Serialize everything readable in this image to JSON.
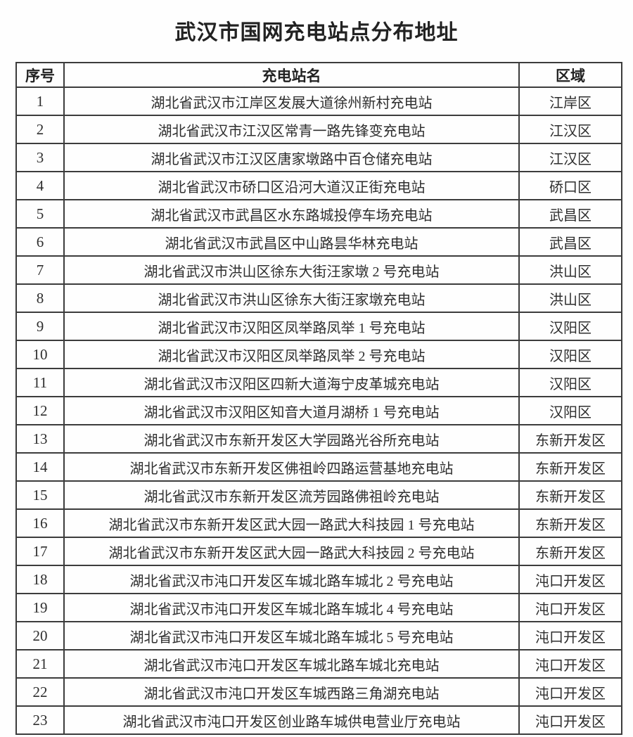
{
  "title": "武汉市国网充电站点分布地址",
  "colors": {
    "background": "#fefefe",
    "border": "#3c3c3c",
    "text": "#2d2d2d"
  },
  "table": {
    "headers": [
      "序号",
      "充电站名",
      "区域"
    ],
    "rows": [
      {
        "no": "1",
        "station": "湖北省武汉市江岸区发展大道徐州新村充电站",
        "district": "江岸区"
      },
      {
        "no": "2",
        "station": "湖北省武汉市江汉区常青一路先锋变充电站",
        "district": "江汉区"
      },
      {
        "no": "3",
        "station": "湖北省武汉市江汉区唐家墩路中百仓储充电站",
        "district": "江汉区"
      },
      {
        "no": "4",
        "station": "湖北省武汉市硚口区沿河大道汉正街充电站",
        "district": "硚口区"
      },
      {
        "no": "5",
        "station": "湖北省武汉市武昌区水东路城投停车场充电站",
        "district": "武昌区"
      },
      {
        "no": "6",
        "station": "湖北省武汉市武昌区中山路昙华林充电站",
        "district": "武昌区"
      },
      {
        "no": "7",
        "station": "湖北省武汉市洪山区徐东大街汪家墩 2 号充电站",
        "district": "洪山区"
      },
      {
        "no": "8",
        "station": "湖北省武汉市洪山区徐东大街汪家墩充电站",
        "district": "洪山区"
      },
      {
        "no": "9",
        "station": "湖北省武汉市汉阳区凤举路凤举 1 号充电站",
        "district": "汉阳区"
      },
      {
        "no": "10",
        "station": "湖北省武汉市汉阳区凤举路凤举 2 号充电站",
        "district": "汉阳区"
      },
      {
        "no": "11",
        "station": "湖北省武汉市汉阳区四新大道海宁皮革城充电站",
        "district": "汉阳区"
      },
      {
        "no": "12",
        "station": "湖北省武汉市汉阳区知音大道月湖桥 1 号充电站",
        "district": "汉阳区"
      },
      {
        "no": "13",
        "station": "湖北省武汉市东新开发区大学园路光谷所充电站",
        "district": "东新开发区"
      },
      {
        "no": "14",
        "station": "湖北省武汉市东新开发区佛祖岭四路运营基地充电站",
        "district": "东新开发区"
      },
      {
        "no": "15",
        "station": "湖北省武汉市东新开发区流芳园路佛祖岭充电站",
        "district": "东新开发区"
      },
      {
        "no": "16",
        "station": "湖北省武汉市东新开发区武大园一路武大科技园 1 号充电站",
        "district": "东新开发区"
      },
      {
        "no": "17",
        "station": "湖北省武汉市东新开发区武大园一路武大科技园 2 号充电站",
        "district": "东新开发区"
      },
      {
        "no": "18",
        "station": "湖北省武汉市沌口开发区车城北路车城北 2 号充电站",
        "district": "沌口开发区"
      },
      {
        "no": "19",
        "station": "湖北省武汉市沌口开发区车城北路车城北 4 号充电站",
        "district": "沌口开发区"
      },
      {
        "no": "20",
        "station": "湖北省武汉市沌口开发区车城北路车城北 5 号充电站",
        "district": "沌口开发区"
      },
      {
        "no": "21",
        "station": "湖北省武汉市沌口开发区车城北路车城北充电站",
        "district": "沌口开发区"
      },
      {
        "no": "22",
        "station": "湖北省武汉市沌口开发区车城西路三角湖充电站",
        "district": "沌口开发区"
      },
      {
        "no": "23",
        "station": "湖北省武汉市沌口开发区创业路车城供电营业厅充电站",
        "district": "沌口开发区"
      }
    ]
  }
}
